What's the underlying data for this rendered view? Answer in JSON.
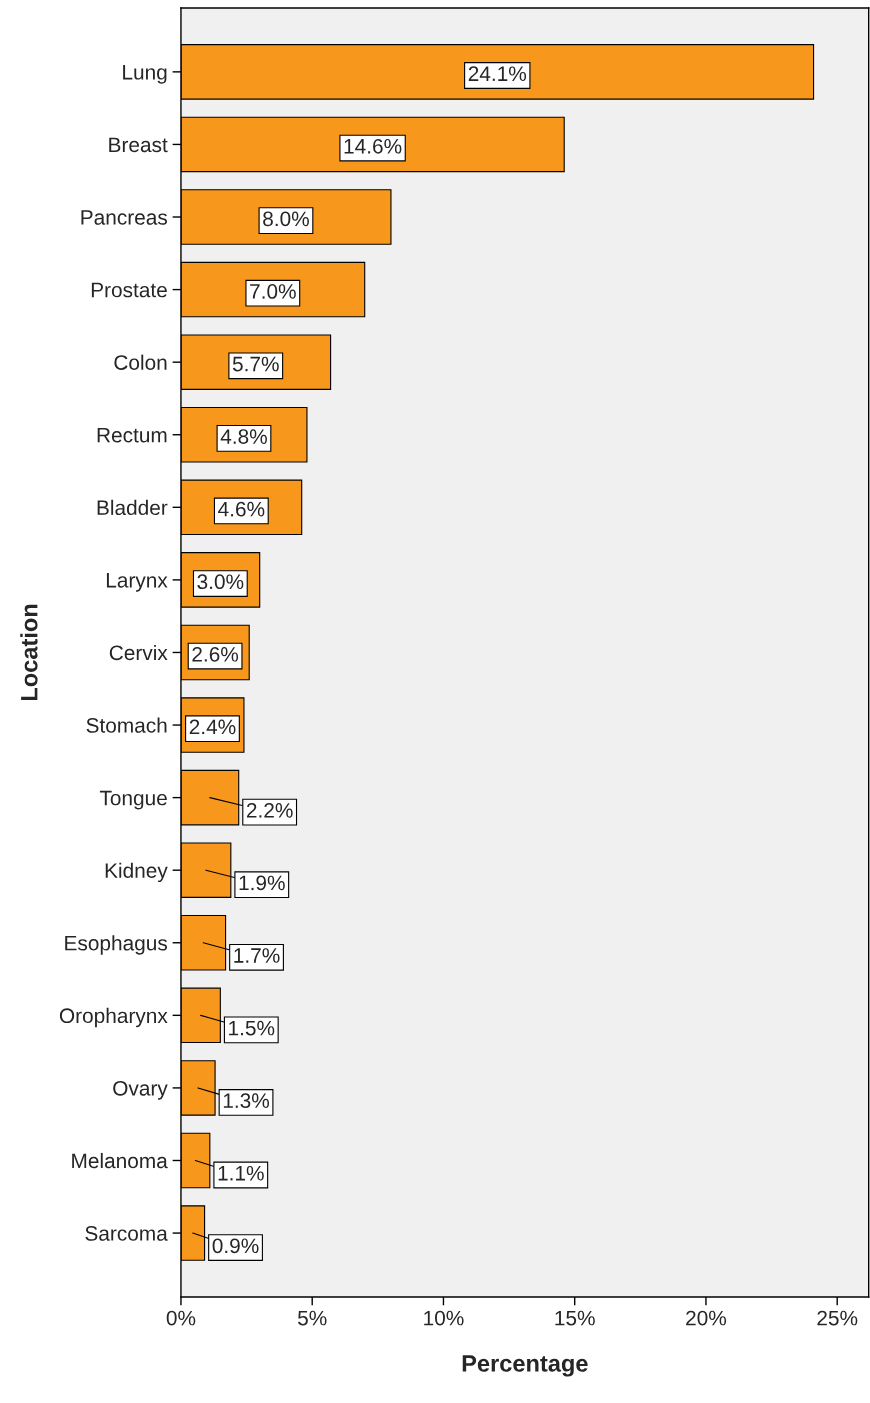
{
  "chart_data": {
    "type": "bar",
    "orientation": "horizontal",
    "xlabel": "Percentage",
    "ylabel": "Location",
    "categories": [
      "Lung",
      "Breast",
      "Pancreas",
      "Prostate",
      "Colon",
      "Rectum",
      "Bladder",
      "Larynx",
      "Cervix",
      "Stomach",
      "Tongue",
      "Kidney",
      "Esophagus",
      "Oropharynx",
      "Ovary",
      "Melanoma",
      "Sarcoma"
    ],
    "values": [
      24.1,
      14.6,
      8.0,
      7.0,
      5.7,
      4.8,
      4.6,
      3.0,
      2.6,
      2.4,
      2.2,
      1.9,
      1.7,
      1.5,
      1.3,
      1.1,
      0.9
    ],
    "value_labels": [
      "24.1%",
      "14.6%",
      "8.0%",
      "7.0%",
      "5.7%",
      "4.8%",
      "4.6%",
      "3.0%",
      "2.6%",
      "2.4%",
      "2.2%",
      "1.9%",
      "1.7%",
      "1.5%",
      "1.3%",
      "1.1%",
      "0.9%"
    ],
    "color": "#f7981d",
    "xlim": [
      0,
      26.2
    ],
    "xticks": [
      {
        "value": 0,
        "label": "0%"
      },
      {
        "value": 5,
        "label": "5%"
      },
      {
        "value": 10,
        "label": "10%"
      },
      {
        "value": 15,
        "label": "15%"
      },
      {
        "value": 20,
        "label": "20%"
      },
      {
        "value": 25,
        "label": "25%"
      }
    ],
    "grid": false,
    "legend": false
  }
}
